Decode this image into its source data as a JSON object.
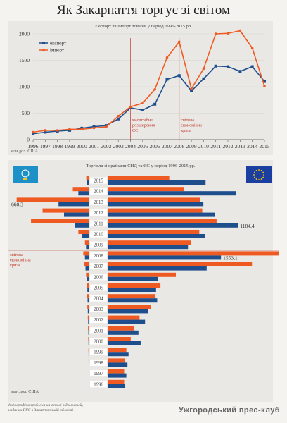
{
  "page": {
    "title": "Як Закарпаття торгує зі світом",
    "footer_note_1": "Інфографіка зроблена на основі відомостей,",
    "footer_note_2": "наданих ГУС в Закарпатській області",
    "club": "Ужгородський прес-клуб"
  },
  "colors": {
    "export": "#1f4e8c",
    "import": "#ef5a23",
    "panel": "#e9e8e4",
    "cis_flag": "#1e90c8",
    "eu_flag": "#1b3fa0",
    "separator": "#c0392b",
    "annotation": "#c0392b"
  },
  "chart_data": [
    {
      "type": "line",
      "title": "Експорт та імпорт товарів у період 1996-2015 рр.",
      "ylabel": "млн.дол. США",
      "ylim": [
        0,
        2000
      ],
      "yticks": [
        0,
        500,
        1000,
        1500,
        2000
      ],
      "x": [
        "1996",
        "1997",
        "1998",
        "1999",
        "2000",
        "2001",
        "2002",
        "2003",
        "2004",
        "2005",
        "2006",
        "2007",
        "2008",
        "2009",
        "2010",
        "2011",
        "2012",
        "2013",
        "2014",
        "2015"
      ],
      "series": [
        {
          "name": "експорт",
          "values": [
            110,
            140,
            160,
            175,
            215,
            245,
            265,
            390,
            600,
            560,
            670,
            1140,
            1210,
            920,
            1150,
            1390,
            1380,
            1290,
            1380,
            1100
          ]
        },
        {
          "name": "імпорт",
          "values": [
            140,
            175,
            175,
            195,
            195,
            220,
            240,
            445,
            620,
            690,
            950,
            1550,
            1850,
            960,
            1340,
            2000,
            2010,
            2060,
            1730,
            1010
          ]
        }
      ],
      "annotations": [
        {
          "x": "2004",
          "text_lines": [
            "масштабне",
            "розширення",
            "ЄС"
          ]
        },
        {
          "x": "2008",
          "text_lines": [
            "світова",
            "економічна",
            "криза"
          ]
        }
      ],
      "legend_position": "top-left"
    },
    {
      "type": "bar",
      "title": "Торгівля зі країнами СНД та ЄС у період 1996-2015 рр.",
      "unit_label": "млн.дол. США",
      "categories": [
        "2015",
        "2014",
        "2013",
        "2012",
        "2011",
        "2010",
        "2009",
        "2008",
        "2007",
        "2006",
        "2005",
        "2004",
        "2003",
        "2002",
        "2001",
        "2000",
        "1999",
        "1998",
        "1997",
        "1996"
      ],
      "left_group": "СНД",
      "right_group": "ЄС",
      "max_value": 1553.1,
      "series": [
        {
          "name": "імпорт",
          "cis": [
            28,
            150,
            660.3,
            425,
            530,
            100,
            40,
            55,
            45,
            30,
            22,
            20,
            18,
            14,
            12,
            10,
            8,
            7,
            6,
            6
          ],
          "eu": [
            560,
            695,
            838,
            860,
            990,
            833,
            760,
            1553.1,
            1312,
            620,
            480,
            435,
            390,
            290,
            240,
            210,
            170,
            160,
            150,
            150
          ]
        },
        {
          "name": "експорт",
          "cis": [
            22,
            100,
            280,
            230,
            130,
            70,
            30,
            40,
            35,
            25,
            18,
            16,
            14,
            11,
            9,
            8,
            7,
            6,
            5,
            5
          ],
          "eu": [
            890,
            1167,
            870,
            975,
            1184.4,
            885,
            730,
            1030,
            900,
            460,
            440,
            450,
            370,
            340,
            280,
            300,
            190,
            180,
            170,
            160
          ]
        }
      ],
      "value_labels": [
        {
          "category": "2013",
          "side": "СНД",
          "value": "660,3"
        },
        {
          "category": "2011",
          "side": "ЄС",
          "value": "1184,4"
        },
        {
          "category": "2008",
          "side": "ЄС",
          "value": "1553,1"
        }
      ],
      "annotation": {
        "after_category": "2009",
        "text_lines": [
          "світова",
          "економічна",
          "криза"
        ]
      }
    }
  ]
}
